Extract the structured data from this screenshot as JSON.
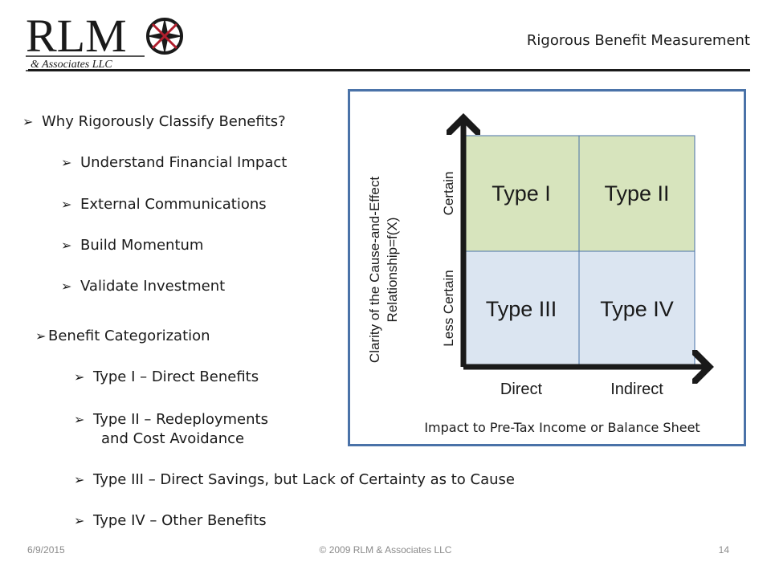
{
  "header": {
    "logo_main": "RLM",
    "logo_sub": "& Associates LLC",
    "title": "Rigorous Benefit Measurement"
  },
  "bullets": {
    "why": "Why Rigorously Classify Benefits?",
    "why_items": [
      "Understand Financial Impact",
      "External Communications",
      "Build Momentum",
      "Validate Investment"
    ],
    "categorization": "Benefit Categorization",
    "type1": "Type I – Direct Benefits",
    "type2_line1": "Type II – Redeployments",
    "type2_line2": "and Cost Avoidance",
    "type3": "Type III – Direct Savings, but Lack of Certainty as to Cause",
    "type4": "Type IV – Other Benefits"
  },
  "diagram": {
    "y_axis_title_line1": "Clarity of the Cause-and-Effect",
    "y_axis_title_line2": "Relationship=f(X)",
    "y_label_top": "Certain",
    "y_label_bottom": "Less Certain",
    "x_label_left": "Direct",
    "x_label_right": "Indirect",
    "x_axis_title": "Impact to Pre-Tax Income or Balance Sheet",
    "quadrants": [
      "Type I",
      "Type II",
      "Type III",
      "Type IV"
    ],
    "colors": {
      "top": "#d7e4bd",
      "bottom": "#dbe5f1",
      "frame": "#4a72a8",
      "axis": "#1a1a1a"
    }
  },
  "footer": {
    "date": "6/9/2015",
    "copyright": "© 2009 RLM & Associates LLC",
    "page": "14"
  }
}
